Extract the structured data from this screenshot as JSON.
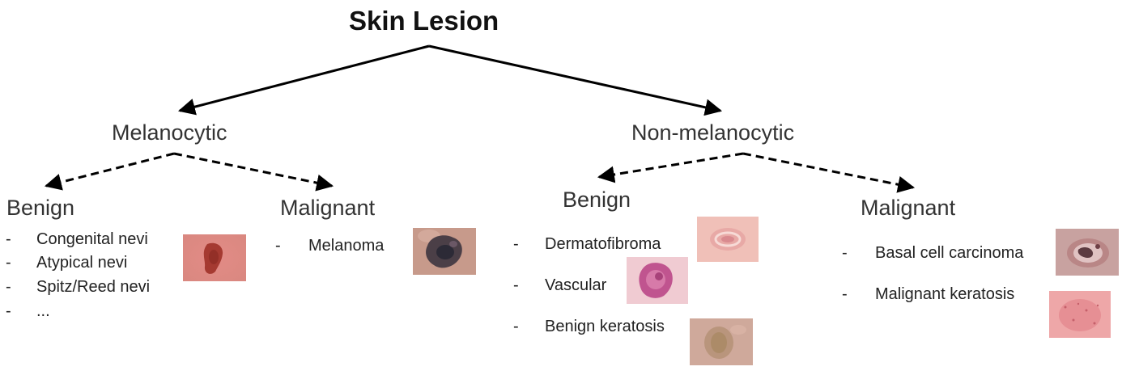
{
  "title": "Skin Lesion",
  "melanocytic": {
    "label": "Melanocytic",
    "benign": {
      "label": "Benign",
      "items": [
        "Congenital nevi",
        "Atypical nevi",
        "Spitz/Reed nevi",
        "..."
      ]
    },
    "malignant": {
      "label": "Malignant",
      "items": [
        "Melanoma"
      ]
    }
  },
  "non_melanocytic": {
    "label": "Non-melanocytic",
    "benign": {
      "label": "Benign",
      "items": [
        "Dermatofibroma",
        "Vascular",
        "Benign keratosis"
      ]
    },
    "malignant": {
      "label": "Malignant",
      "items": [
        "Basal cell carcinoma",
        "Malignant keratosis"
      ]
    }
  },
  "bullet": "-",
  "images": {
    "congenital_nevi": "skin-lesion-photo-nevus",
    "melanoma": "skin-lesion-photo-melanoma",
    "dermatofibroma": "skin-lesion-photo-dermatofibroma",
    "vascular": "skin-lesion-photo-vascular",
    "benign_keratosis": "skin-lesion-photo-benign-keratosis",
    "basal_cell_carcinoma": "skin-lesion-photo-basal-cell-carcinoma",
    "malignant_keratosis": "skin-lesion-photo-malignant-keratosis"
  }
}
